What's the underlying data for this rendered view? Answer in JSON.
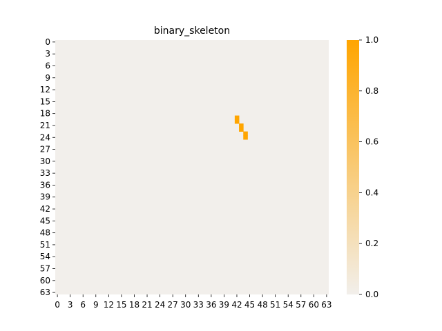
{
  "chart_data": {
    "type": "heatmap",
    "title": "binary_skeleton",
    "xlabel": "",
    "ylabel": "",
    "grid_size": [
      64,
      64
    ],
    "x_tick_labels": [
      "0",
      "3",
      "6",
      "9",
      "12",
      "15",
      "18",
      "21",
      "24",
      "27",
      "30",
      "33",
      "36",
      "39",
      "42",
      "45",
      "48",
      "51",
      "54",
      "57",
      "60",
      "63"
    ],
    "y_tick_labels": [
      "0",
      "3",
      "6",
      "9",
      "12",
      "15",
      "18",
      "21",
      "24",
      "27",
      "30",
      "33",
      "36",
      "39",
      "42",
      "45",
      "48",
      "51",
      "54",
      "57",
      "60",
      "63"
    ],
    "background_value": 0,
    "nonzero_cells": [
      {
        "row": 19,
        "col": 42,
        "value": 1
      },
      {
        "row": 20,
        "col": 42,
        "value": 1
      },
      {
        "row": 21,
        "col": 43,
        "value": 1
      },
      {
        "row": 22,
        "col": 43,
        "value": 1
      },
      {
        "row": 23,
        "col": 44,
        "value": 1
      },
      {
        "row": 24,
        "col": 44,
        "value": 1
      }
    ],
    "colorbar": {
      "min": 0.0,
      "max": 1.0,
      "tick_labels": [
        "0.0",
        "0.2",
        "0.4",
        "0.6",
        "0.8",
        "1.0"
      ],
      "color_low": "#f2efeb",
      "color_high": "#ffa500"
    },
    "grid": false
  }
}
